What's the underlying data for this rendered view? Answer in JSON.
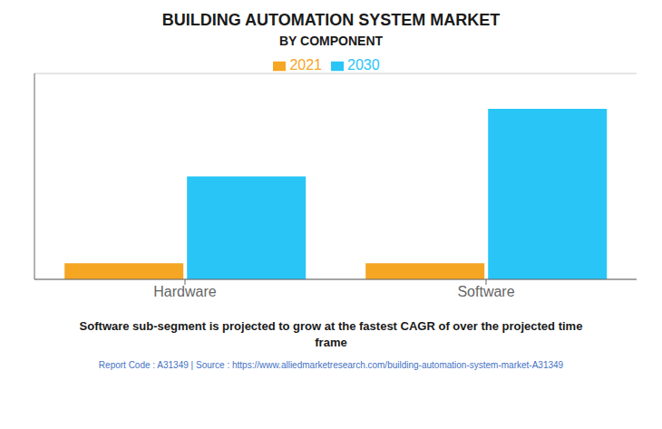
{
  "chart_data": {
    "type": "bar",
    "title": "BUILDING AUTOMATION SYSTEM MARKET",
    "subtitle": "BY COMPONENT",
    "categories": [
      "Hardware",
      "Software"
    ],
    "series": [
      {
        "name": "2021",
        "color": "#F5A623",
        "values": [
          0.55,
          0.55
        ]
      },
      {
        "name": "2030",
        "color": "#29C5F6",
        "values": [
          3.5,
          5.8
        ]
      }
    ],
    "ylim": [
      0,
      7
    ],
    "yticks": [
      0,
      1.1666666666666667,
      2.3333333333333335,
      3.5,
      4.666666666666667,
      5.833333333333333,
      7
    ],
    "grid": true,
    "legend": "top",
    "tick_labels": "x",
    "annotations": [
      "Software sub-segment is projected to grow at the fastest CAGR of over the projected time\nframe",
      "Report Code : A31349  |  Source : https://www.alliedmarketresearch.com/building-automation-system-market-A31349"
    ]
  }
}
